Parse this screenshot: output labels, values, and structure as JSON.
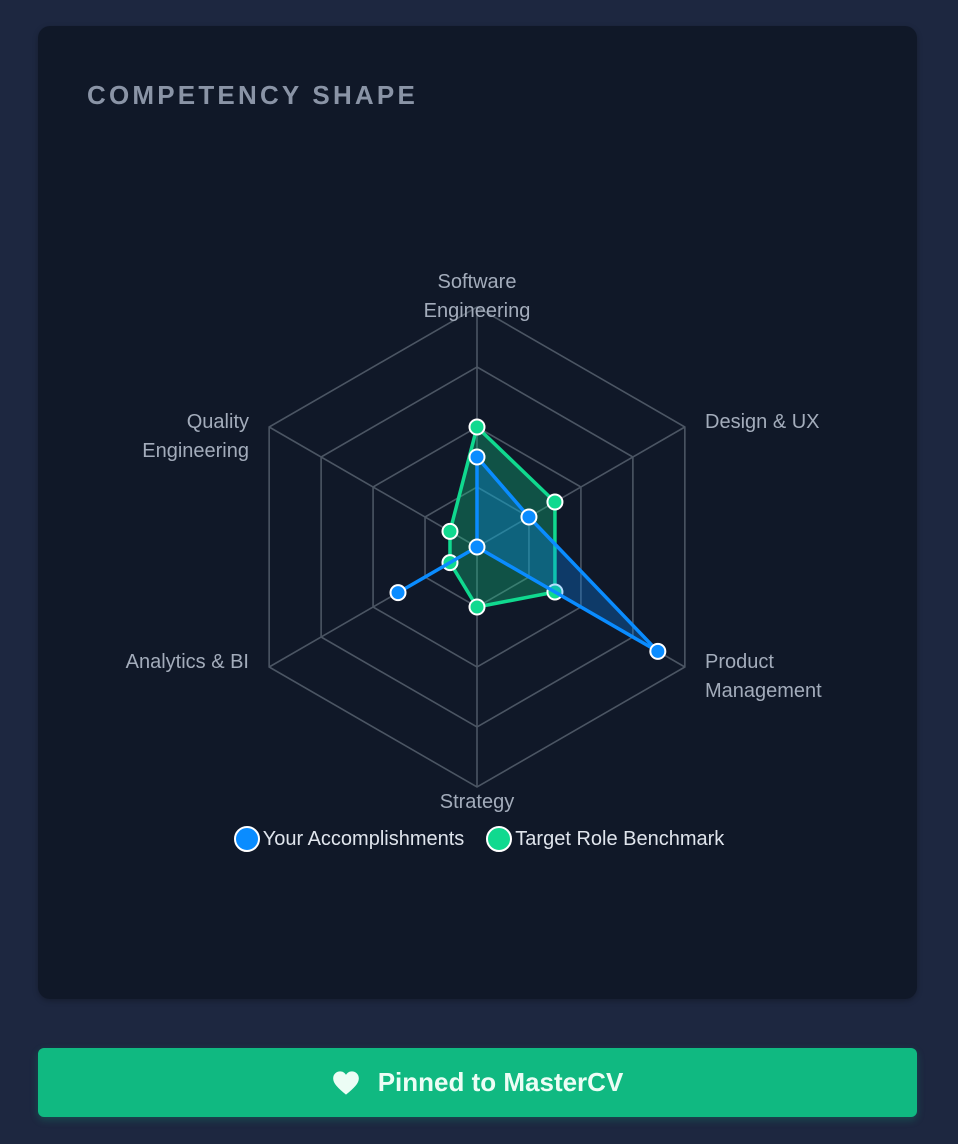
{
  "card": {
    "title": "COMPETENCY SHAPE"
  },
  "colors": {
    "page_bg": "#1d2740",
    "card_bg": "#101828",
    "grid": "#4b5563",
    "accomplishments": "#0a8cff",
    "benchmark": "#10d98f",
    "button": "#10b981",
    "button_text": "#ecfdf5"
  },
  "legend": {
    "items": [
      {
        "label": "Your Accomplishments",
        "color": "#0a8cff"
      },
      {
        "label": "Target Role Benchmark",
        "color": "#10d98f"
      }
    ]
  },
  "button": {
    "label": "Pinned to MasterCV",
    "icon": "heart-icon"
  },
  "chart_data": {
    "type": "radar",
    "title": "COMPETENCY SHAPE",
    "axes": [
      [
        "Software",
        "Engineering"
      ],
      [
        "Design & UX"
      ],
      [
        "Product",
        "Management"
      ],
      [
        "Strategy"
      ],
      [
        "Analytics & BI"
      ],
      [
        "Quality",
        "Engineering"
      ]
    ],
    "categories": [
      "Software Engineering",
      "Design & UX",
      "Product Management",
      "Strategy",
      "Analytics & BI",
      "Quality Engineering"
    ],
    "range": [
      0,
      100
    ],
    "rings": 4,
    "grid": true,
    "legend_position": "bottom",
    "series": [
      {
        "name": "Your Accomplishments",
        "color": "#0a8cff",
        "values": [
          37.5,
          25,
          87,
          0,
          38,
          0
        ]
      },
      {
        "name": "Target Role Benchmark",
        "color": "#10d98f",
        "values": [
          50,
          37.5,
          37.5,
          25,
          13,
          13
        ]
      }
    ]
  }
}
